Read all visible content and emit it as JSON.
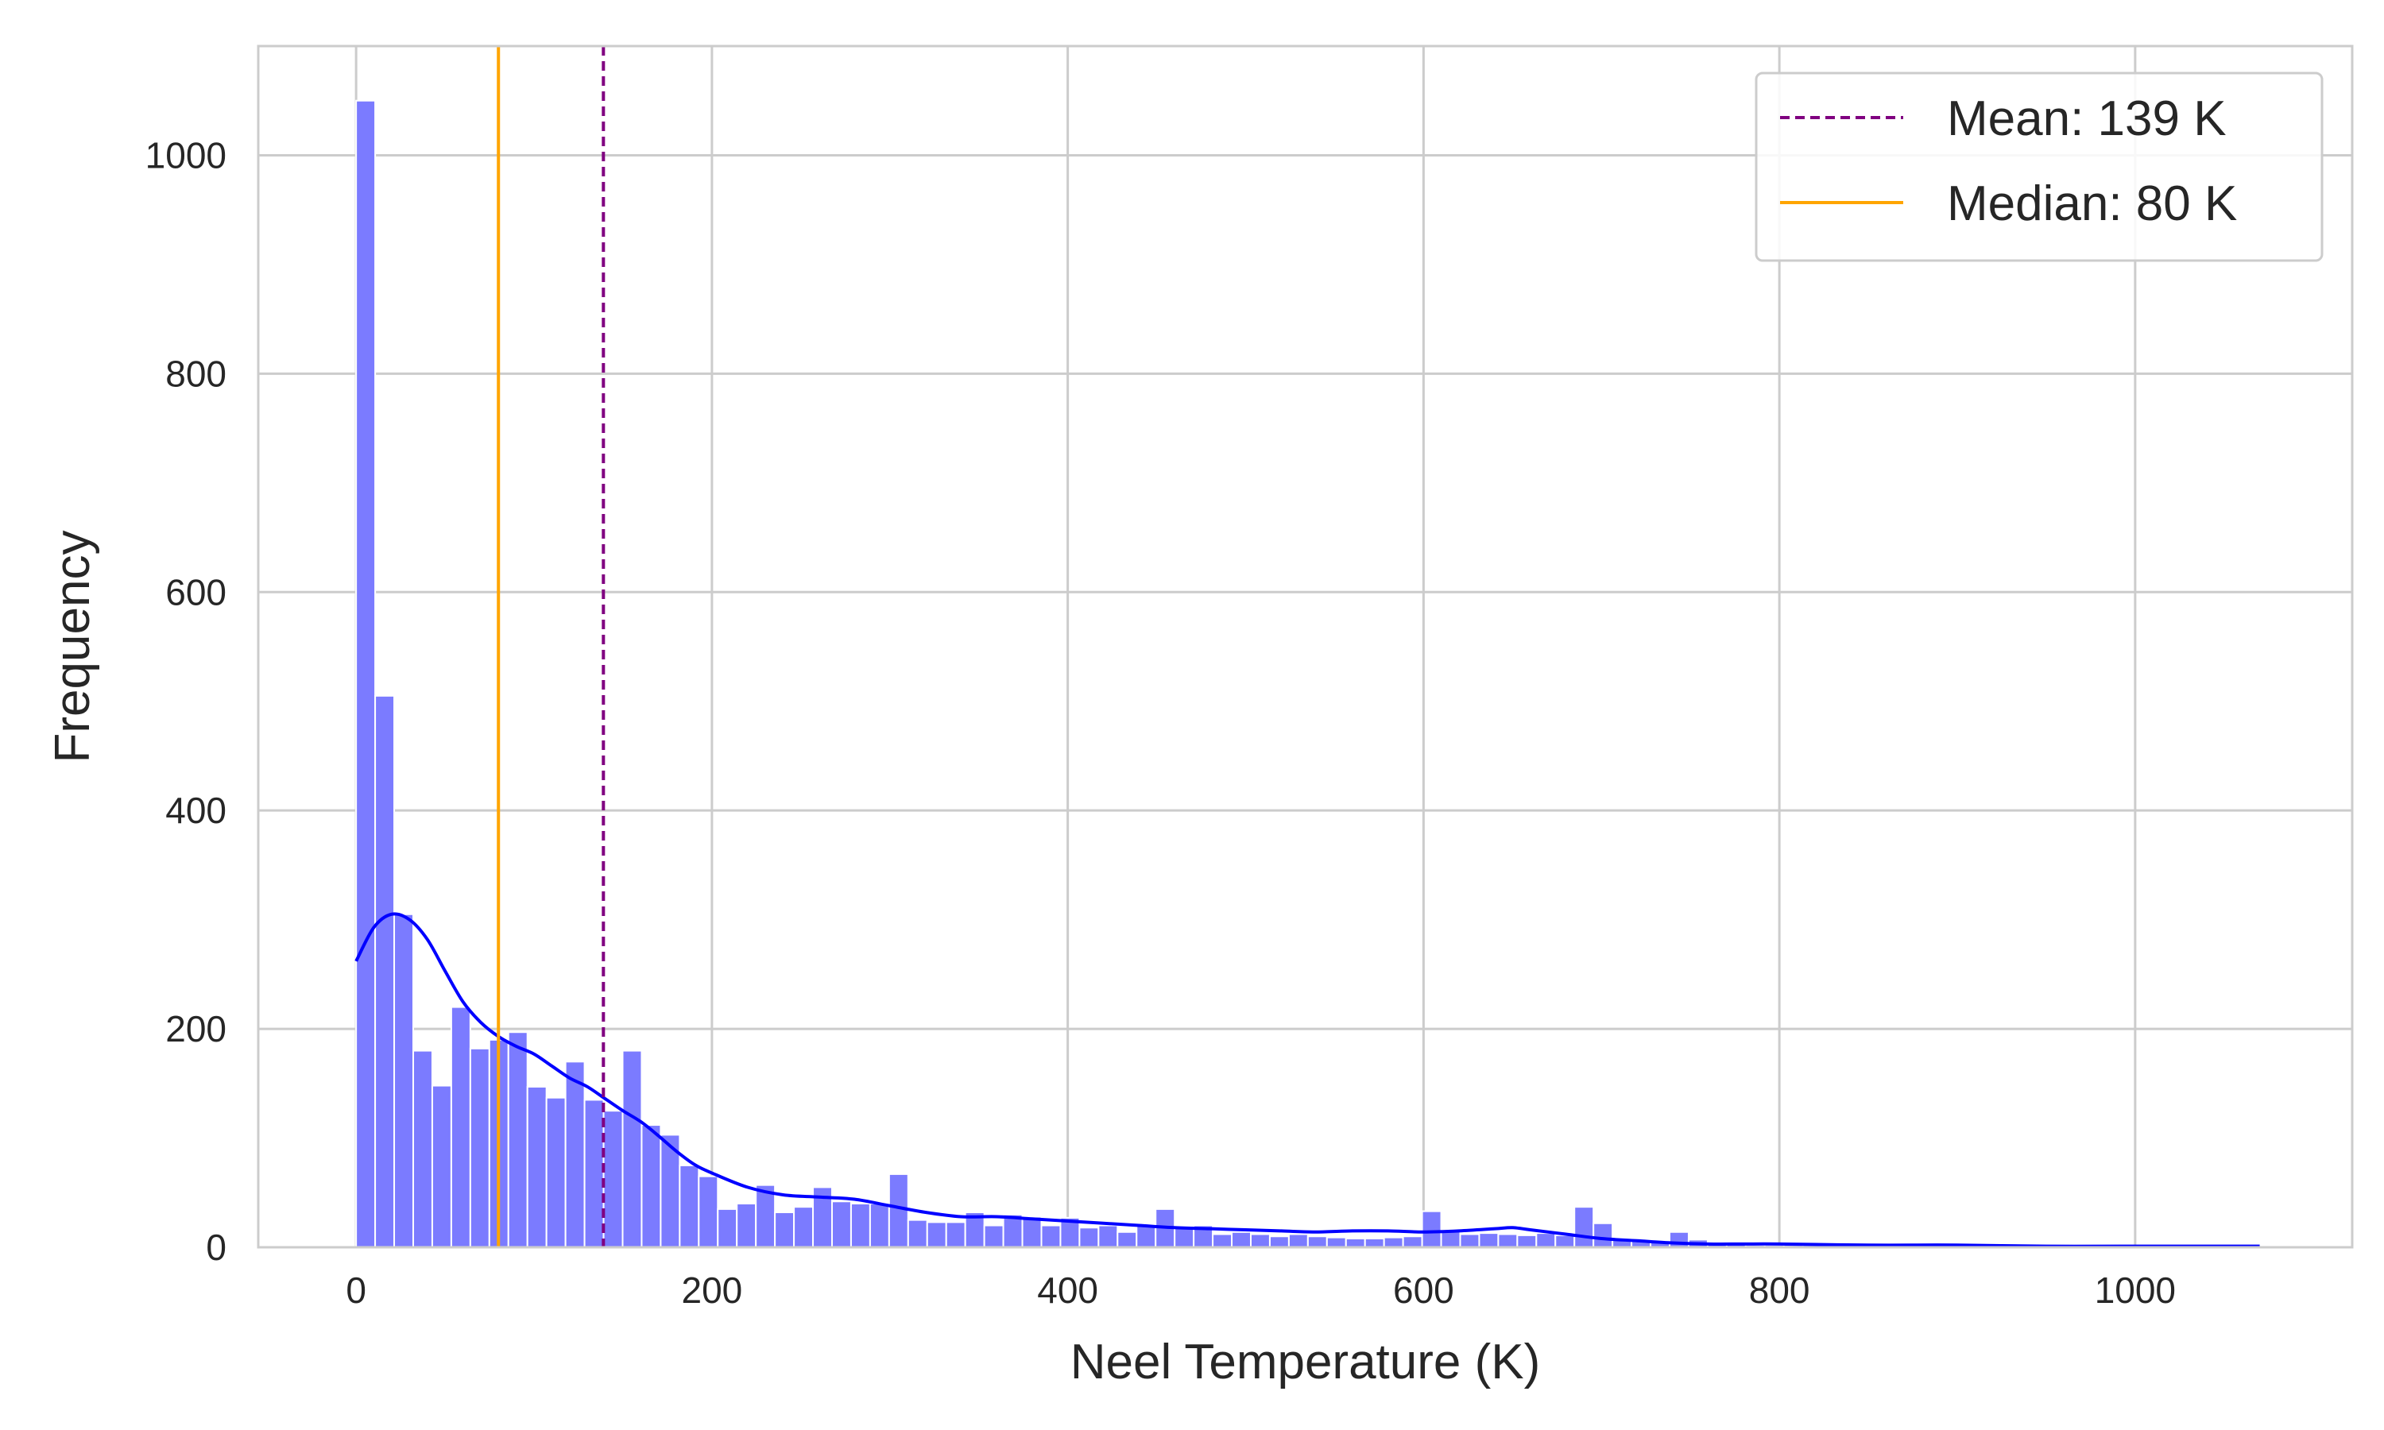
{
  "chart_data": {
    "type": "bar",
    "xlabel": "Neel Temperature (K)",
    "ylabel": "Frequency",
    "xlim": [
      -55,
      1122
    ],
    "ylim": [
      0,
      1100
    ],
    "xticks": [
      0,
      200,
      400,
      600,
      800,
      1000
    ],
    "yticks": [
      0,
      200,
      400,
      600,
      800,
      1000
    ],
    "xtick_labels": [
      "0",
      "200",
      "400",
      "600",
      "800",
      "1000"
    ],
    "ytick_labels": [
      "0",
      "200",
      "400",
      "600",
      "800",
      "1000"
    ],
    "grid": true,
    "legend_position": "top-right",
    "bin_start": 0,
    "bin_width": 10.7,
    "counts": [
      1050,
      505,
      305,
      180,
      148,
      220,
      182,
      190,
      197,
      147,
      137,
      170,
      135,
      125,
      180,
      112,
      103,
      75,
      65,
      35,
      40,
      57,
      32,
      37,
      55,
      42,
      40,
      40,
      67,
      25,
      23,
      23,
      32,
      20,
      30,
      28,
      20,
      27,
      18,
      20,
      14,
      20,
      35,
      18,
      20,
      12,
      14,
      12,
      10,
      12,
      10,
      9,
      8,
      8,
      9,
      10,
      33,
      15,
      12,
      13,
      12,
      11,
      13,
      11,
      37,
      22,
      7,
      6,
      5,
      14,
      7,
      3,
      3,
      2,
      2,
      2,
      2,
      2,
      1,
      1,
      1,
      1,
      1,
      1,
      1,
      1,
      1,
      1,
      1,
      1,
      1,
      1,
      1,
      1,
      1,
      1,
      1,
      1,
      1,
      1
    ],
    "kde": {
      "x": [
        0,
        10,
        20,
        30,
        40,
        50,
        60,
        70,
        80,
        90,
        100,
        110,
        120,
        130,
        140,
        150,
        160,
        170,
        180,
        190,
        200,
        220,
        240,
        260,
        280,
        300,
        320,
        340,
        360,
        380,
        400,
        420,
        440,
        460,
        480,
        500,
        520,
        540,
        560,
        580,
        600,
        620,
        640,
        650,
        660,
        680,
        700,
        720,
        740,
        760,
        780,
        800,
        850,
        900,
        950,
        1000,
        1070
      ],
      "y": [
        262,
        293,
        305,
        300,
        282,
        253,
        225,
        206,
        193,
        184,
        177,
        166,
        155,
        147,
        136,
        125,
        115,
        102,
        88,
        76,
        68,
        55,
        48,
        46,
        44,
        38,
        32,
        28,
        28,
        26,
        24,
        22,
        20,
        18,
        17,
        16,
        15,
        14,
        15,
        15,
        14,
        15,
        17,
        18,
        16,
        12,
        8,
        6,
        4,
        3,
        3,
        3,
        2,
        2,
        1,
        1,
        1
      ]
    },
    "mean": 139,
    "median": 80,
    "series": [
      {
        "name": "Mean: 139 K",
        "color": "#800080",
        "style": "dashed"
      },
      {
        "name": "Median: 80 K",
        "color": "#ffa500",
        "style": "solid"
      }
    ],
    "colors": {
      "bars": "#7b7bff",
      "kde": "#0000ff",
      "grid": "#cccccc",
      "axes": "#cccccc"
    }
  }
}
